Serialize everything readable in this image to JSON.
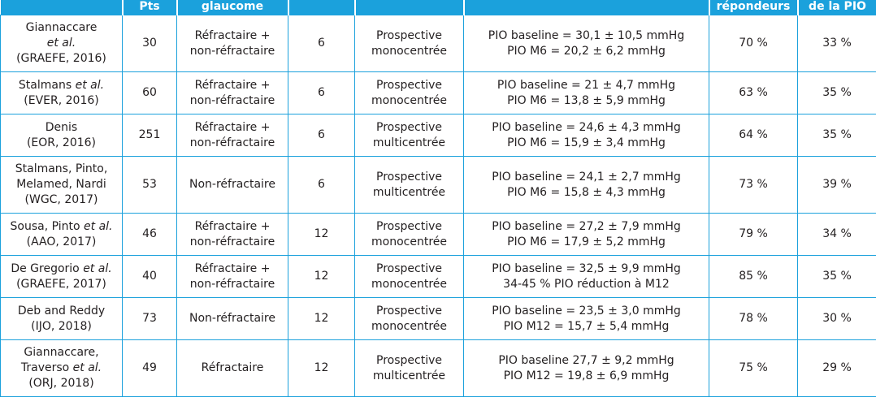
{
  "header": [
    "",
    "Pts",
    "glaucome",
    "",
    "",
    "",
    "répondeurs",
    "de la PIO"
  ],
  "rows": [
    {
      "study": "Giannaccare\n<i>et al.</i>\n(GRAEFE, 2016)",
      "pts": "30",
      "type": "Réfractaire +\nnon-réfractaire",
      "months": "6",
      "design": "Prospective\nmonocentrée",
      "iop": "PIO baseline = 30,1 ± 10,5 mmHg\nPIO M6 = 20,2 ± 6,2 mmHg",
      "responders": "70 %",
      "reduction": "33 %"
    },
    {
      "study": "Stalmans <i>et al.</i>\n(EVER, 2016)",
      "pts": "60",
      "type": "Réfractaire +\nnon-réfractaire",
      "months": "6",
      "design": "Prospective\nmonocentrée",
      "iop": "PIO baseline = 21 ± 4,7 mmHg\nPIO M6 = 13,8 ± 5,9 mmHg",
      "responders": "63 %",
      "reduction": "35 %"
    },
    {
      "study": "Denis\n(EOR, 2016)",
      "pts": "251",
      "type": "Réfractaire +\nnon-réfractaire",
      "months": "6",
      "design": "Prospective\nmulticentrée",
      "iop": "PIO baseline = 24,6 ± 4,3 mmHg\nPIO M6 = 15,9 ± 3,4 mmHg",
      "responders": "64 %",
      "reduction": "35 %"
    },
    {
      "study": "Stalmans, Pinto,\nMelamed, Nardi\n(WGC, 2017)",
      "pts": "53",
      "type": "Non-réfractaire",
      "months": "6",
      "design": "Prospective\nmulticentrée",
      "iop": "PIO baseline = 24,1 ± 2,7 mmHg\nPIO M6 = 15,8 ± 4,3 mmHg",
      "responders": "73 %",
      "reduction": "39 %"
    },
    {
      "study": "Sousa, Pinto <i>et al.</i>\n(AAO, 2017)",
      "pts": "46",
      "type": "Réfractaire +\nnon-réfractaire",
      "months": "12",
      "design": "Prospective\nmonocentrée",
      "iop": "PIO baseline = 27,2 ± 7,9 mmHg\nPIO M6 = 17,9 ± 5,2 mmHg",
      "responders": "79 %",
      "reduction": "34 %"
    },
    {
      "study": "De Gregorio <i>et al.</i>\n(GRAEFE, 2017)",
      "pts": "40",
      "type": "Réfractaire +\nnon-réfractaire",
      "months": "12",
      "design": "Prospective\nmonocentrée",
      "iop": "PIO baseline = 32,5 ± 9,9 mmHg\n34-45 % PIO réduction à M12",
      "responders": "85 %",
      "reduction": "35 %"
    },
    {
      "study": "Deb and Reddy\n(IJO, 2018)",
      "pts": "73",
      "type": "Non-réfractaire",
      "months": "12",
      "design": "Prospective\nmonocentrée",
      "iop": "PIO baseline = 23,5 ± 3,0 mmHg\nPIO M12 = 15,7 ± 5,4 mmHg",
      "responders": "78 %",
      "reduction": "30 %"
    },
    {
      "study": "Giannaccare,\nTraverso <i>et al.</i>\n(ORJ, 2018)",
      "pts": "49",
      "type": "Réfractaire",
      "months": "12",
      "design": "Prospective\nmulticentrée",
      "iop": "PIO baseline 27,7 ± 9,2 mmHg\nPIO M12 = 19,8 ± 6,9 mmHg",
      "responders": "75 %",
      "reduction": "29 %"
    }
  ]
}
